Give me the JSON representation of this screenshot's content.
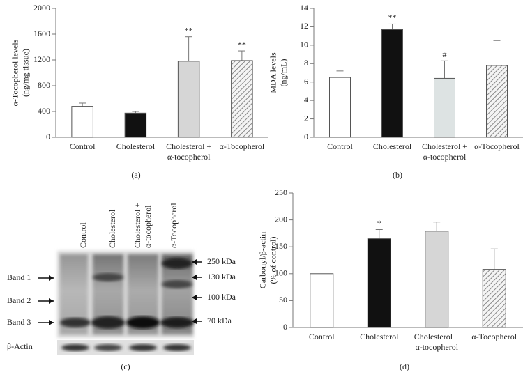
{
  "chart_data": [
    {
      "type": "bar",
      "panel_label": "(a)",
      "ylabel": "α-Tocopherol levels\n(ng/mg tissue)",
      "categories": [
        "Control",
        "Cholesterol",
        "Cholesterol +\nα-tocopherol",
        "α-Tocopherol"
      ],
      "values": [
        480,
        375,
        1180,
        1190
      ],
      "errors": [
        50,
        25,
        380,
        150
      ],
      "annotations": [
        null,
        null,
        "**",
        "**"
      ],
      "colors": [
        "#ffffff",
        "#111111",
        "#d6d6d6",
        "#ffffff"
      ],
      "hatch": [
        false,
        false,
        false,
        true
      ],
      "ylim": [
        0,
        2000
      ],
      "yticks": [
        0,
        400,
        800,
        1200,
        1600,
        2000
      ]
    },
    {
      "type": "bar",
      "panel_label": "(b)",
      "ylabel": "MDA levels\n(ng/mL)",
      "categories": [
        "Control",
        "Cholesterol",
        "Cholesterol +\nα-tocopherol",
        "α-Tocopherol"
      ],
      "values": [
        6.5,
        11.7,
        6.4,
        7.8
      ],
      "errors": [
        0.7,
        0.6,
        1.9,
        2.7
      ],
      "annotations": [
        null,
        "**",
        "#",
        null
      ],
      "colors": [
        "#ffffff",
        "#111111",
        "#dde3e3",
        "#ffffff"
      ],
      "hatch": [
        false,
        false,
        false,
        true
      ],
      "ylim": [
        0,
        14
      ],
      "yticks": [
        0,
        2,
        4,
        6,
        8,
        10,
        12,
        14
      ]
    },
    {
      "type": "bar",
      "panel_label": "(d)",
      "ylabel": "Carbonyl/β-actin\n(% of control)",
      "categories": [
        "Control",
        "Cholesterol",
        "Cholesterol +\nα-tocopherol",
        "α-Tocopherol"
      ],
      "values": [
        100,
        165,
        179,
        108
      ],
      "errors": [
        0,
        17,
        17,
        38
      ],
      "annotations": [
        null,
        "*",
        null,
        null
      ],
      "colors": [
        "#ffffff",
        "#111111",
        "#d6d6d6",
        "#ffffff"
      ],
      "hatch": [
        false,
        false,
        false,
        true
      ],
      "ylim": [
        0,
        250
      ],
      "yticks": [
        0,
        50,
        100,
        150,
        200,
        250
      ]
    }
  ],
  "blot": {
    "panel_label": "(c)",
    "lanes": [
      "Control",
      "Cholesterol",
      "Cholesterol +\nα-tocopherol",
      "α-Tocopherol"
    ],
    "bands": [
      "Band 1",
      "Band 2",
      "Band 3",
      "β-Actin"
    ],
    "markers": [
      "250 kDa",
      "130 kDa",
      "100 kDa",
      "70 kDa"
    ]
  }
}
